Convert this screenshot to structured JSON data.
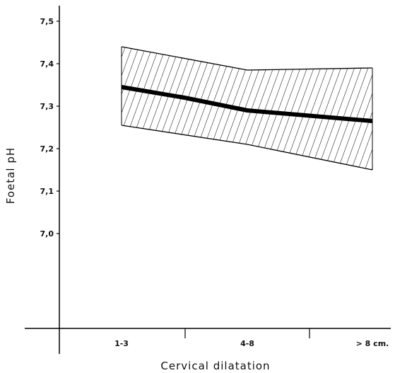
{
  "chart_data": {
    "type": "line",
    "title": "",
    "xlabel": "Cervical dilatation",
    "ylabel": "Foetal pH",
    "categories": [
      "1-3",
      "4-8",
      "> 8 cm."
    ],
    "y_ticks": [
      "7,5",
      "7,4",
      "7,3",
      "7,2",
      "7,1",
      "7,0"
    ],
    "ylim": [
      6.87,
      7.51
    ],
    "grid": false,
    "legend": "none",
    "band": {
      "x": [
        0,
        1,
        2
      ],
      "upper": [
        7.44,
        7.385,
        7.39
      ],
      "lower": [
        7.255,
        7.21,
        7.15
      ]
    },
    "mean_line": {
      "x": [
        0,
        0.5,
        1,
        2
      ],
      "values": [
        7.345,
        7.32,
        7.29,
        7.265
      ]
    },
    "colors": {
      "line": "#000000",
      "hatch": "#000000",
      "background": "#ffffff"
    }
  }
}
